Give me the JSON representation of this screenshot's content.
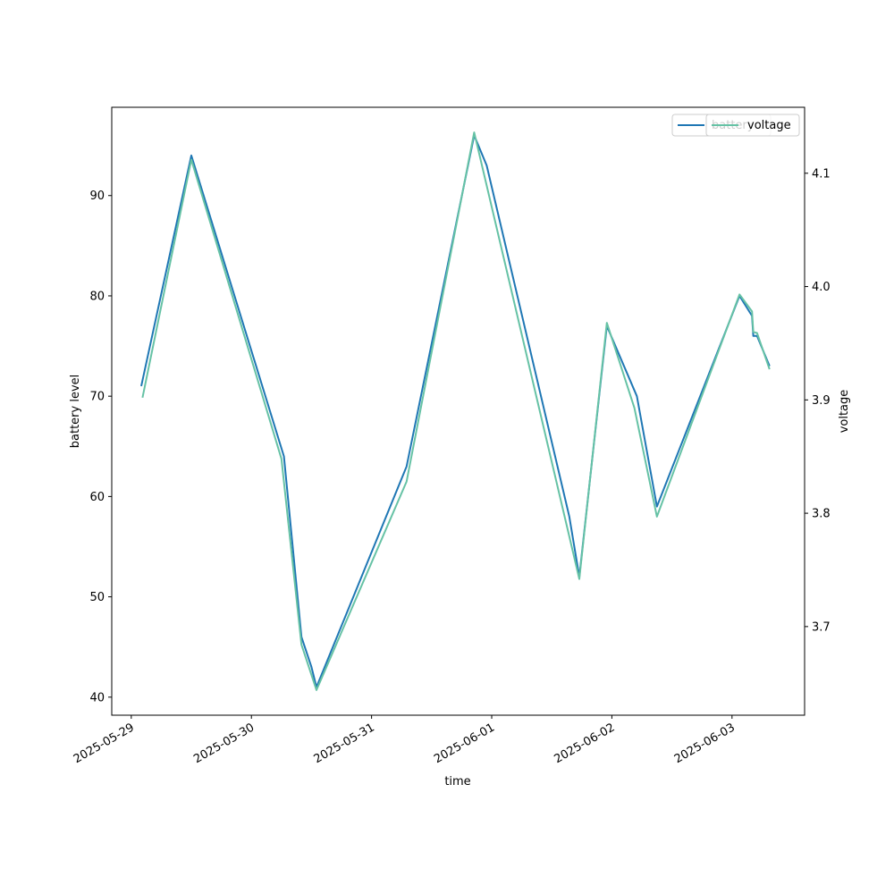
{
  "chart_data": {
    "type": "line",
    "title": "",
    "xlabel": "time",
    "ylabel": "battery level",
    "y2label": "voltage",
    "x_ticks": [
      "2025-05-29",
      "2025-05-30",
      "2025-05-31",
      "2025-06-01",
      "2025-06-02",
      "2025-06-03"
    ],
    "y_ticks": [
      40,
      50,
      60,
      70,
      80,
      90
    ],
    "y2_ticks": [
      "3.7",
      "3.8",
      "3.9",
      "4.0",
      "4.1"
    ],
    "ylim": [
      38.2,
      98.8
    ],
    "y2lim": [
      3.6218,
      4.1582
    ],
    "xlim": [
      "2025-05-28 20:06",
      "2025-06-03 14:30"
    ],
    "grid": false,
    "legend_placement": "top-right",
    "series": [
      {
        "name": "battery",
        "axis": "left",
        "color": "#1f77b4",
        "points": [
          [
            "2025-05-29 02:00",
            71
          ],
          [
            "2025-05-29 12:00",
            94
          ],
          [
            "2025-05-30 06:30",
            64
          ],
          [
            "2025-05-30 10:00",
            46
          ],
          [
            "2025-05-30 12:00",
            43
          ],
          [
            "2025-05-30 13:00",
            41
          ],
          [
            "2025-05-31 07:00",
            63
          ],
          [
            "2025-05-31 20:30",
            96
          ],
          [
            "2025-05-31 23:00",
            93
          ],
          [
            "2025-06-01 15:30",
            58
          ],
          [
            "2025-06-01 17:30",
            52
          ],
          [
            "2025-06-01 23:00",
            77
          ],
          [
            "2025-06-02 05:00",
            70
          ],
          [
            "2025-06-02 09:00",
            59
          ],
          [
            "2025-06-03 01:30",
            80
          ],
          [
            "2025-06-03 04:00",
            78
          ],
          [
            "2025-06-03 04:15",
            76
          ],
          [
            "2025-06-03 05:00",
            76
          ],
          [
            "2025-06-03 07:30",
            73
          ]
        ]
      },
      {
        "name": "voltage",
        "axis": "right",
        "color": "#66c2a5",
        "points": [
          [
            "2025-05-29 02:15",
            3.902
          ],
          [
            "2025-05-29 12:00",
            4.112
          ],
          [
            "2025-05-30 06:00",
            3.848
          ],
          [
            "2025-05-30 10:00",
            3.684
          ],
          [
            "2025-05-30 13:00",
            3.644
          ],
          [
            "2025-05-31 07:00",
            3.828
          ],
          [
            "2025-05-31 20:30",
            4.136
          ],
          [
            "2025-06-01 17:30",
            3.742
          ],
          [
            "2025-06-01 23:00",
            3.968
          ],
          [
            "2025-06-02 04:30",
            3.893
          ],
          [
            "2025-06-02 09:00",
            3.797
          ],
          [
            "2025-06-03 01:30",
            3.993
          ],
          [
            "2025-06-03 04:00",
            3.978
          ],
          [
            "2025-06-03 04:15",
            3.96
          ],
          [
            "2025-06-03 05:00",
            3.959
          ],
          [
            "2025-06-03 07:30",
            3.927
          ]
        ]
      }
    ]
  }
}
